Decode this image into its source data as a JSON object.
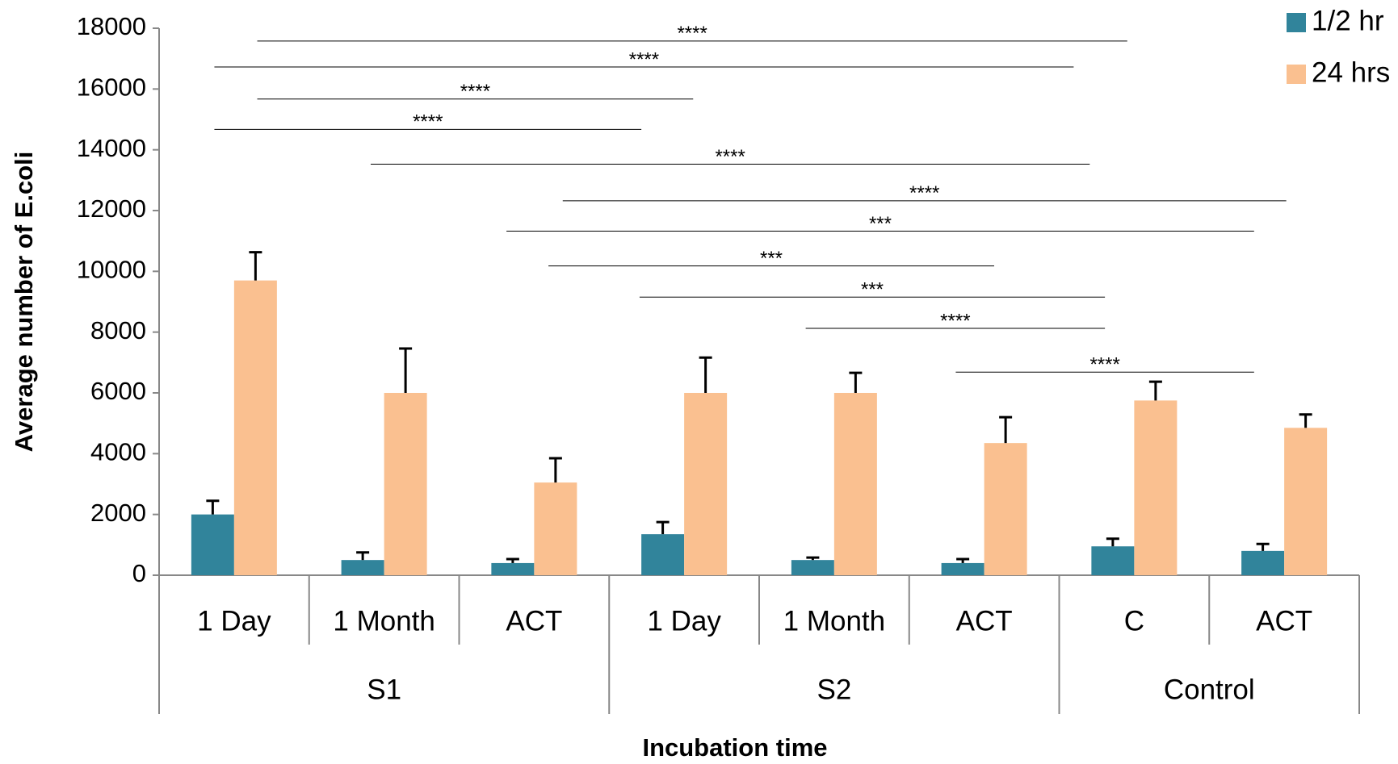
{
  "chart_data": {
    "type": "bar",
    "y_label": "Average number of E.coli",
    "x_label": "Incubation time",
    "groups": [
      {
        "label": "S1",
        "categories": [
          "1 Day",
          "1 Month",
          "ACT"
        ]
      },
      {
        "label": "S2",
        "categories": [
          "1 Day",
          "1 Month",
          "ACT"
        ]
      },
      {
        "label": "Control",
        "categories": [
          "C",
          "ACT"
        ]
      }
    ],
    "series": [
      {
        "name": "1/2 hr",
        "color": "#31849b",
        "values": [
          2000,
          500,
          400,
          1350,
          500,
          400,
          950,
          800
        ],
        "errors": [
          450,
          250,
          130,
          400,
          80,
          130,
          250,
          230
        ]
      },
      {
        "name": "24 hrs",
        "color": "#fac090",
        "values": [
          9700,
          6000,
          3050,
          6000,
          6000,
          4350,
          5750,
          4850
        ],
        "errors": [
          930,
          1460,
          800,
          1160,
          660,
          850,
          620,
          440
        ]
      }
    ],
    "ylim": [
      0,
      18000
    ],
    "yticks": [
      0,
      2000,
      4000,
      6000,
      8000,
      10000,
      12000,
      14000,
      16000,
      18000
    ],
    "legend": "top-right",
    "annotations": [
      "****",
      "****",
      "****",
      "****",
      "****",
      "****",
      "***",
      "***",
      "***",
      "****",
      "****"
    ]
  }
}
